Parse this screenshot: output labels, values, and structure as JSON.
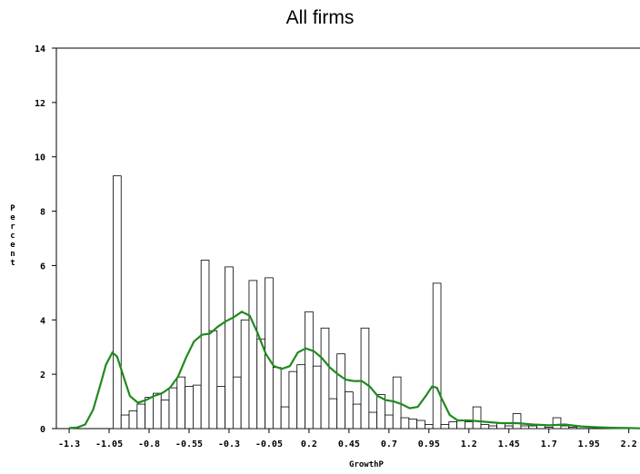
{
  "chart_data": {
    "type": "bar",
    "title": "All firms",
    "xlabel": "GrowthP",
    "ylabel": "Percent",
    "xlim": [
      -1.38,
      2.27
    ],
    "ylim": [
      0,
      14
    ],
    "xticks": [
      -1.3,
      -1.05,
      -0.8,
      -0.55,
      -0.3,
      -0.05,
      0.2,
      0.45,
      0.7,
      0.95,
      1.2,
      1.45,
      1.7,
      1.95,
      2.2
    ],
    "xtick_labels": [
      "-1.3",
      "-1.05",
      "-0.8",
      "-0.55",
      "-0.3",
      "-0.05",
      "0.2",
      "0.45",
      "0.7",
      "0.95",
      "1.2",
      "1.45",
      "1.7",
      "1.95",
      "2.2"
    ],
    "yticks": [
      0,
      2,
      4,
      6,
      8,
      10,
      12,
      14
    ],
    "ytick_labels": [
      "0",
      "2",
      "4",
      "6",
      "8",
      "10",
      "12",
      "14"
    ],
    "bin_width": 0.05,
    "series": [
      {
        "type": "histogram",
        "bins": [
          {
            "x": -1.0,
            "value": 9.3
          },
          {
            "x": -0.95,
            "value": 0.5
          },
          {
            "x": -0.9,
            "value": 0.65
          },
          {
            "x": -0.85,
            "value": 0.9
          },
          {
            "x": -0.8,
            "value": 1.15
          },
          {
            "x": -0.75,
            "value": 1.3
          },
          {
            "x": -0.7,
            "value": 1.05
          },
          {
            "x": -0.65,
            "value": 1.5
          },
          {
            "x": -0.6,
            "value": 1.9
          },
          {
            "x": -0.55,
            "value": 1.55
          },
          {
            "x": -0.5,
            "value": 1.6
          },
          {
            "x": -0.45,
            "value": 6.2
          },
          {
            "x": -0.4,
            "value": 3.6
          },
          {
            "x": -0.35,
            "value": 1.55
          },
          {
            "x": -0.3,
            "value": 5.95
          },
          {
            "x": -0.25,
            "value": 1.9
          },
          {
            "x": -0.2,
            "value": 4.0
          },
          {
            "x": -0.15,
            "value": 5.45
          },
          {
            "x": -0.1,
            "value": 3.3
          },
          {
            "x": -0.05,
            "value": 5.55
          },
          {
            "x": 0.0,
            "value": 2.25
          },
          {
            "x": 0.05,
            "value": 0.8
          },
          {
            "x": 0.1,
            "value": 2.1
          },
          {
            "x": 0.15,
            "value": 2.35
          },
          {
            "x": 0.2,
            "value": 4.3
          },
          {
            "x": 0.25,
            "value": 2.3
          },
          {
            "x": 0.3,
            "value": 3.7
          },
          {
            "x": 0.35,
            "value": 1.1
          },
          {
            "x": 0.4,
            "value": 2.75
          },
          {
            "x": 0.45,
            "value": 1.35
          },
          {
            "x": 0.5,
            "value": 0.9
          },
          {
            "x": 0.55,
            "value": 3.7
          },
          {
            "x": 0.6,
            "value": 0.6
          },
          {
            "x": 0.65,
            "value": 1.25
          },
          {
            "x": 0.7,
            "value": 0.5
          },
          {
            "x": 0.75,
            "value": 1.9
          },
          {
            "x": 0.8,
            "value": 0.4
          },
          {
            "x": 0.85,
            "value": 0.35
          },
          {
            "x": 0.9,
            "value": 0.3
          },
          {
            "x": 0.95,
            "value": 0.15
          },
          {
            "x": 1.0,
            "value": 5.35
          },
          {
            "x": 1.05,
            "value": 0.15
          },
          {
            "x": 1.1,
            "value": 0.25
          },
          {
            "x": 1.15,
            "value": 0.3
          },
          {
            "x": 1.2,
            "value": 0.25
          },
          {
            "x": 1.25,
            "value": 0.8
          },
          {
            "x": 1.3,
            "value": 0.15
          },
          {
            "x": 1.35,
            "value": 0.1
          },
          {
            "x": 1.4,
            "value": 0.2
          },
          {
            "x": 1.45,
            "value": 0.1
          },
          {
            "x": 1.5,
            "value": 0.55
          },
          {
            "x": 1.55,
            "value": 0.1
          },
          {
            "x": 1.6,
            "value": 0.1
          },
          {
            "x": 1.65,
            "value": 0.15
          },
          {
            "x": 1.7,
            "value": 0.05
          },
          {
            "x": 1.75,
            "value": 0.4
          },
          {
            "x": 1.8,
            "value": 0.1
          },
          {
            "x": 1.85,
            "value": 0.05
          }
        ]
      },
      {
        "type": "density-line",
        "color": "#1f8a1f",
        "x": [
          -1.3,
          -1.25,
          -1.2,
          -1.15,
          -1.1,
          -1.07,
          -1.03,
          -1.0,
          -0.97,
          -0.92,
          -0.87,
          -0.82,
          -0.77,
          -0.72,
          -0.67,
          -0.62,
          -0.57,
          -0.52,
          -0.47,
          -0.42,
          -0.37,
          -0.32,
          -0.27,
          -0.22,
          -0.17,
          -0.12,
          -0.07,
          -0.02,
          0.03,
          0.08,
          0.13,
          0.18,
          0.23,
          0.28,
          0.33,
          0.38,
          0.43,
          0.48,
          0.53,
          0.58,
          0.63,
          0.68,
          0.73,
          0.78,
          0.83,
          0.88,
          0.93,
          0.97,
          1.0,
          1.03,
          1.08,
          1.13,
          1.2,
          1.3,
          1.4,
          1.5,
          1.6,
          1.7,
          1.8,
          1.9,
          2.0,
          2.1,
          2.2,
          2.27
        ],
        "y": [
          0.02,
          0.04,
          0.15,
          0.7,
          1.7,
          2.35,
          2.8,
          2.65,
          2.1,
          1.2,
          0.95,
          1.05,
          1.2,
          1.3,
          1.5,
          1.9,
          2.6,
          3.2,
          3.45,
          3.5,
          3.75,
          3.95,
          4.1,
          4.3,
          4.15,
          3.5,
          2.75,
          2.3,
          2.2,
          2.3,
          2.8,
          2.95,
          2.85,
          2.6,
          2.25,
          2.0,
          1.8,
          1.75,
          1.75,
          1.55,
          1.2,
          1.05,
          1.0,
          0.9,
          0.75,
          0.8,
          1.2,
          1.55,
          1.5,
          1.1,
          0.5,
          0.3,
          0.3,
          0.25,
          0.2,
          0.2,
          0.15,
          0.12,
          0.15,
          0.08,
          0.05,
          0.03,
          0.02,
          0.01
        ]
      }
    ],
    "grid": false,
    "legend": "none"
  }
}
